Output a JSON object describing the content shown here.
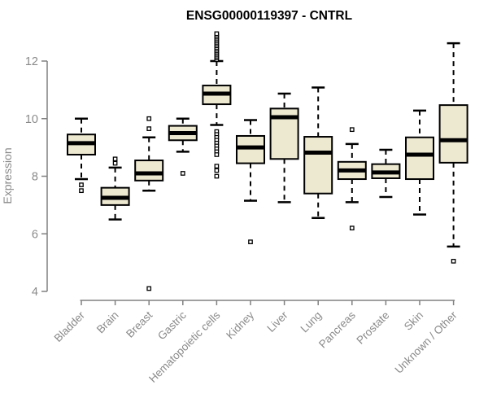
{
  "chart_data": {
    "type": "boxplot",
    "title": "ENSG00000119397 - CNTRL",
    "xlabel": "",
    "ylabel": "Expression",
    "yticks": [
      4,
      6,
      8,
      10,
      12
    ],
    "ylim": [
      3.6,
      13.1
    ],
    "grid": false,
    "legend": "none",
    "colors": {
      "box_fill": "#EDE8D0",
      "box_border": "#000000",
      "median": "#000000",
      "whisker": "#000000",
      "outlier_stroke": "#000000",
      "outlier_fill": "#ffffff",
      "axis": "#808080",
      "tick_label": "#8A8A8A",
      "title": "#000000"
    },
    "categories": [
      "Bladder",
      "Brain",
      "Breast",
      "Gastric",
      "Hematopoietic cells",
      "Kidney",
      "Liver",
      "Lung",
      "Pancreas",
      "Prostate",
      "Skin",
      "Unknown / Other"
    ],
    "boxes": [
      {
        "label": "Bladder",
        "whislo": 7.9,
        "q1": 8.75,
        "med": 9.15,
        "q3": 9.45,
        "whishi": 10.0,
        "outliers": [
          7.7,
          7.5
        ]
      },
      {
        "label": "Brain",
        "whislo": 6.5,
        "q1": 7.0,
        "med": 7.25,
        "q3": 7.6,
        "whishi": 8.3,
        "outliers": [
          8.6,
          8.45
        ]
      },
      {
        "label": "Breast",
        "whislo": 7.5,
        "q1": 7.85,
        "med": 8.1,
        "q3": 8.55,
        "whishi": 9.35,
        "outliers": [
          10.0,
          9.65,
          4.1
        ]
      },
      {
        "label": "Gastric",
        "whislo": 8.85,
        "q1": 9.25,
        "med": 9.5,
        "q3": 9.75,
        "whishi": 10.0,
        "outliers": [
          8.1
        ]
      },
      {
        "label": "Hematopoietic cells",
        "whislo": 9.78,
        "q1": 10.5,
        "med": 10.87,
        "q3": 11.15,
        "whishi": 12.0,
        "outliers": [
          12.05,
          12.11,
          12.17,
          12.23,
          12.29,
          12.35,
          12.41,
          12.47,
          12.53,
          12.59,
          12.65,
          12.71,
          12.77,
          12.83,
          12.89,
          12.95,
          9.55,
          9.45,
          9.35,
          9.25,
          9.15,
          9.05,
          8.95,
          8.85,
          8.75,
          8.35,
          8.2,
          8.0
        ]
      },
      {
        "label": "Kidney",
        "whislo": 7.15,
        "q1": 8.45,
        "med": 9.0,
        "q3": 9.4,
        "whishi": 9.95,
        "outliers": [
          5.72
        ]
      },
      {
        "label": "Liver",
        "whislo": 7.1,
        "q1": 8.6,
        "med": 10.05,
        "q3": 10.35,
        "whishi": 10.87,
        "outliers": []
      },
      {
        "label": "Lung",
        "whislo": 6.55,
        "q1": 7.4,
        "med": 8.82,
        "q3": 9.37,
        "whishi": 11.08,
        "outliers": []
      },
      {
        "label": "Pancreas",
        "whislo": 7.1,
        "q1": 7.9,
        "med": 8.2,
        "q3": 8.5,
        "whishi": 9.12,
        "outliers": [
          9.62,
          6.2
        ]
      },
      {
        "label": "Prostate",
        "whislo": 7.28,
        "q1": 7.93,
        "med": 8.13,
        "q3": 8.42,
        "whishi": 8.92,
        "outliers": []
      },
      {
        "label": "Skin",
        "whislo": 6.67,
        "q1": 7.9,
        "med": 8.75,
        "q3": 9.35,
        "whishi": 10.28,
        "outliers": []
      },
      {
        "label": "Unknown / Other",
        "whislo": 5.56,
        "q1": 8.47,
        "med": 9.25,
        "q3": 10.47,
        "whishi": 12.62,
        "outliers": [
          5.05
        ]
      }
    ]
  }
}
